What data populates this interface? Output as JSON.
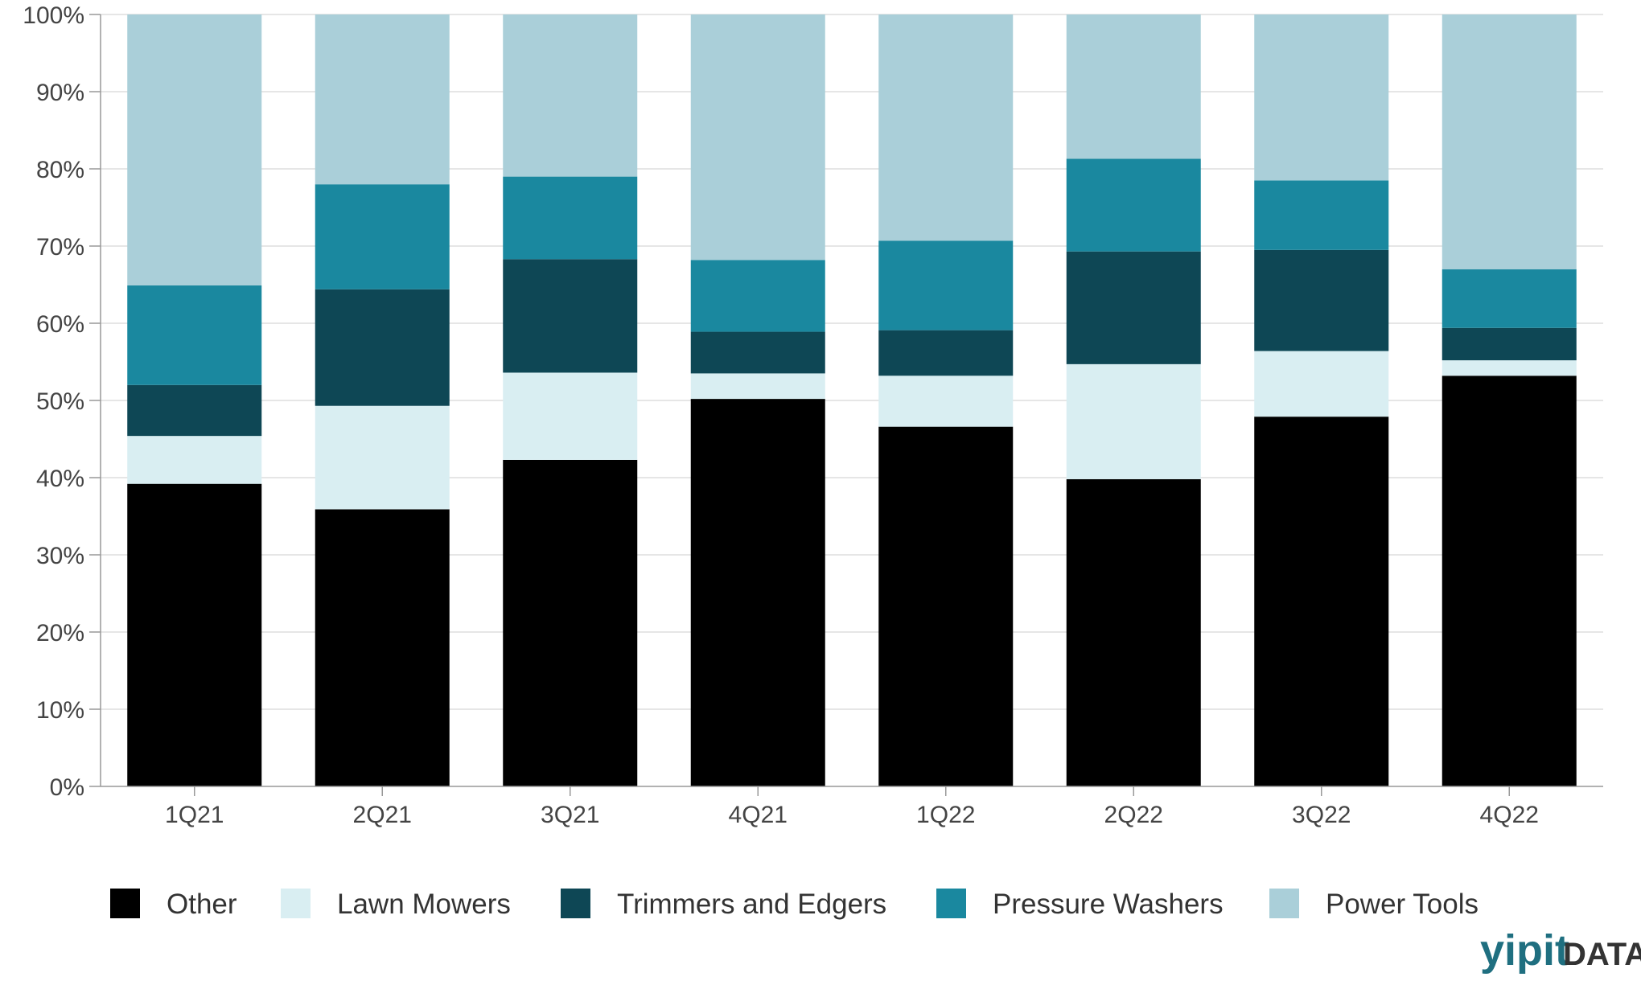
{
  "chart_data": {
    "type": "bar",
    "stacked": true,
    "categories": [
      "1Q21",
      "2Q21",
      "3Q21",
      "4Q21",
      "1Q22",
      "2Q22",
      "3Q22",
      "4Q22"
    ],
    "series": [
      {
        "name": "Other",
        "color": "#000000",
        "values": [
          39.2,
          35.9,
          42.3,
          50.2,
          46.6,
          39.8,
          47.9,
          53.2
        ]
      },
      {
        "name": "Lawn Mowers",
        "color": "#d9eef2",
        "values": [
          6.2,
          13.4,
          11.3,
          3.3,
          6.6,
          14.9,
          8.5,
          2.0
        ]
      },
      {
        "name": "Trimmers and Edgers",
        "color": "#0e4755",
        "values": [
          6.6,
          15.1,
          14.7,
          5.4,
          5.9,
          14.6,
          13.1,
          4.2
        ]
      },
      {
        "name": "Pressure Washers",
        "color": "#1a889f",
        "values": [
          12.9,
          13.6,
          10.7,
          9.3,
          11.6,
          12.0,
          9.0,
          7.6
        ]
      },
      {
        "name": "Power Tools",
        "color": "#aacfd9",
        "values": [
          35.1,
          22.0,
          21.0,
          31.8,
          29.3,
          18.7,
          21.5,
          33.0
        ]
      }
    ],
    "y_ticks": [
      "0%",
      "10%",
      "20%",
      "30%",
      "40%",
      "50%",
      "60%",
      "70%",
      "80%",
      "90%",
      "100%"
    ],
    "ylim": [
      0,
      100
    ],
    "grid": true,
    "legend_position": "bottom",
    "title": "",
    "xlabel": "",
    "ylabel": ""
  },
  "brand": {
    "main": "yipit",
    "sub": "DATA"
  }
}
